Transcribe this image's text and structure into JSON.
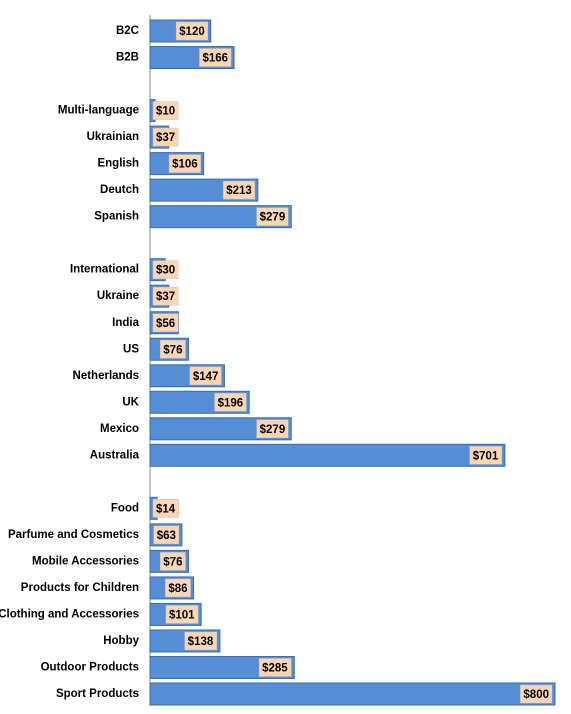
{
  "chart_data": {
    "type": "bar",
    "orientation": "horizontal",
    "color": "#558ed5",
    "label_color": "#fcd5b5",
    "categories": [
      "B2C",
      "B2B",
      null,
      "Multi-language",
      "Ukrainian",
      "English",
      "Deutch",
      "Spanish",
      null,
      "International",
      "Ukraine",
      "India",
      "US",
      "Netherlands",
      "UK",
      "Mexico",
      "Australia",
      null,
      "Food",
      "Parfume and Cosmetics",
      "Mobile Accessories",
      "Products for Children",
      "Clothing and Accessories",
      "Hobby",
      "Outdoor Products",
      "Sport Products"
    ],
    "values": [
      120,
      166,
      null,
      10,
      37,
      106,
      213,
      279,
      null,
      30,
      37,
      56,
      76,
      147,
      196,
      279,
      701,
      null,
      14,
      63,
      76,
      86,
      101,
      138,
      285,
      800
    ],
    "value_labels": [
      "$120",
      "$166",
      null,
      "$10",
      "$37",
      "$106",
      "$213",
      "$279",
      null,
      "$30",
      "$37",
      "$56",
      "$76",
      "$147",
      "$196",
      "$279",
      "$701",
      null,
      "$14",
      "$63",
      "$76",
      "$86",
      "$101",
      "$138",
      "$285",
      "$800"
    ],
    "xlim": [
      0,
      800
    ]
  }
}
